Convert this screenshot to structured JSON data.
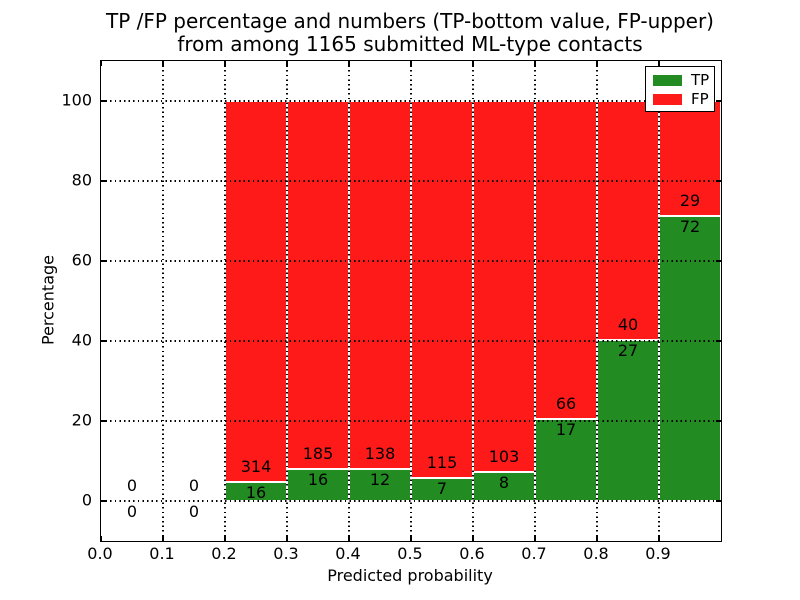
{
  "figure": {
    "title_line1": "TP /FP percentage and numbers (TP-bottom value, FP-upper)",
    "title_line2": "from among 1165 submitted ML-type contacts"
  },
  "chart_data": {
    "type": "bar",
    "stacked": true,
    "normalized_to_percent": true,
    "title": "TP /FP percentage and numbers (TP-bottom value, FP-upper) from among 1165 submitted ML-type contacts",
    "xlabel": "Predicted probability",
    "ylabel": "Percentage",
    "xlim": [
      0.0,
      1.0
    ],
    "ylim": [
      -10,
      110
    ],
    "xticks": [
      0.0,
      0.1,
      0.2,
      0.3,
      0.4,
      0.5,
      0.6,
      0.7,
      0.8,
      0.9
    ],
    "xtick_labels": [
      "0.0",
      "0.1",
      "0.2",
      "0.3",
      "0.4",
      "0.5",
      "0.6",
      "0.7",
      "0.8",
      "0.9"
    ],
    "yticks": [
      0,
      20,
      40,
      60,
      80,
      100
    ],
    "ytick_labels": [
      "0",
      "20",
      "40",
      "60",
      "80",
      "100"
    ],
    "grid": "dotted",
    "legend_position": "upper right",
    "total_contacts": 1165,
    "series": [
      {
        "name": "TP",
        "color": "#228b22"
      },
      {
        "name": "FP",
        "color": "#ff1a1a"
      }
    ],
    "bins": [
      {
        "range": [
          0.0,
          0.1
        ],
        "tp": 0,
        "fp": 0,
        "tp_pct": 0,
        "fp_pct": 0
      },
      {
        "range": [
          0.1,
          0.2
        ],
        "tp": 0,
        "fp": 0,
        "tp_pct": 0,
        "fp_pct": 0
      },
      {
        "range": [
          0.2,
          0.3
        ],
        "tp": 16,
        "fp": 314,
        "tp_pct": 4.8,
        "fp_pct": 95.2
      },
      {
        "range": [
          0.3,
          0.4
        ],
        "tp": 16,
        "fp": 185,
        "tp_pct": 8.0,
        "fp_pct": 92.0
      },
      {
        "range": [
          0.4,
          0.5
        ],
        "tp": 12,
        "fp": 138,
        "tp_pct": 8.0,
        "fp_pct": 92.0
      },
      {
        "range": [
          0.5,
          0.6
        ],
        "tp": 7,
        "fp": 115,
        "tp_pct": 5.7,
        "fp_pct": 94.3
      },
      {
        "range": [
          0.6,
          0.7
        ],
        "tp": 8,
        "fp": 103,
        "tp_pct": 7.2,
        "fp_pct": 92.8
      },
      {
        "range": [
          0.7,
          0.8
        ],
        "tp": 17,
        "fp": 66,
        "tp_pct": 20.5,
        "fp_pct": 79.5
      },
      {
        "range": [
          0.8,
          0.9
        ],
        "tp": 27,
        "fp": 40,
        "tp_pct": 40.3,
        "fp_pct": 59.7
      },
      {
        "range": [
          0.9,
          1.0
        ],
        "tp": 72,
        "fp": 29,
        "tp_pct": 71.3,
        "fp_pct": 28.7
      }
    ]
  }
}
